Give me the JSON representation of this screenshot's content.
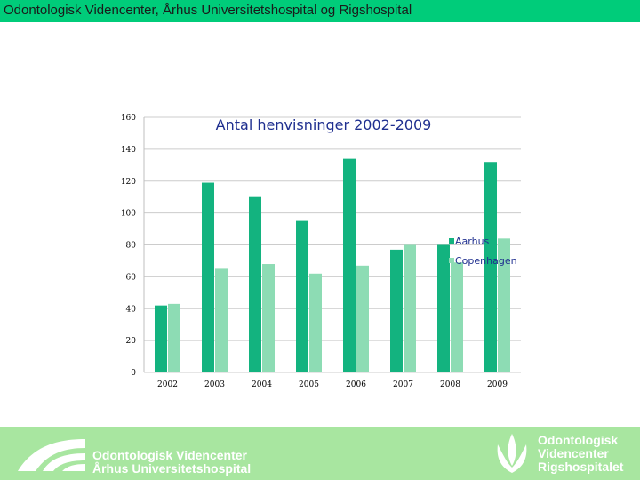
{
  "header": {
    "title": "Odontologisk Videncenter, Århus Universitetshospital og Rigshospital"
  },
  "chart_data": {
    "type": "bar",
    "title": "Antal henvisninger 2002-2009",
    "categories": [
      "2002",
      "2003",
      "2004",
      "2005",
      "2006",
      "2007",
      "2008",
      "2009"
    ],
    "series": [
      {
        "name": "Aarhus",
        "values": [
          42,
          119,
          110,
          95,
          134,
          77,
          80,
          132
        ]
      },
      {
        "name": "Copenhagen",
        "values": [
          43,
          65,
          68,
          62,
          67,
          80,
          69,
          84
        ]
      }
    ],
    "ylim": [
      0,
      160
    ],
    "yticks": [
      "0",
      "20",
      "40",
      "60",
      "80",
      "100",
      "120",
      "140",
      "160"
    ],
    "grid": true,
    "legend": "right",
    "colors": {
      "Aarhus": "#13b37f",
      "Copenhagen": "#8ddcb4",
      "grid": "#cccccc",
      "title": "#1f2f8f"
    }
  },
  "footer": {
    "left_logo": {
      "line1": "Odontologisk Videncenter",
      "line2": "Århus Universitetshospital"
    },
    "right_logo": {
      "line1": "Odontologisk",
      "line2": "Videncenter",
      "line3": "Rigshospitalet"
    }
  }
}
